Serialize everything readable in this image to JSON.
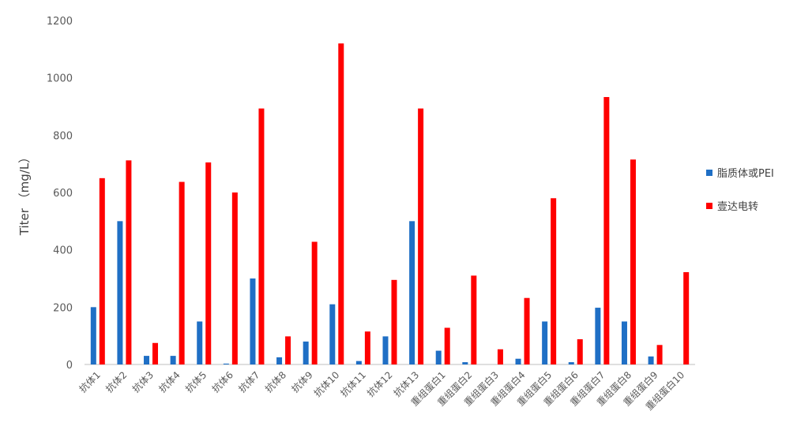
{
  "chart_data": {
    "type": "bar",
    "ylabel": "Titer （mg/L）",
    "ylim": [
      0,
      1200
    ],
    "yticks": [
      0,
      200,
      400,
      600,
      800,
      1000,
      1200
    ],
    "grid": false,
    "legend_position": "right",
    "categories": [
      "抗体1",
      "抗体2",
      "抗体3",
      "抗体4",
      "抗体5",
      "抗体6",
      "抗体7",
      "抗体8",
      "抗体9",
      "抗体10",
      "抗体11",
      "抗体12",
      "抗体13",
      "重组蛋白1",
      "重组蛋白2",
      "重组蛋白3",
      "重组蛋白4",
      "重组蛋白5",
      "重组蛋白6",
      "重组蛋白7",
      "重组蛋白8",
      "重组蛋白9",
      "重组蛋白10"
    ],
    "series": [
      {
        "name": "脂质体或PEI",
        "color": "#1f6fc5",
        "values": [
          200,
          500,
          30,
          30,
          150,
          3,
          300,
          25,
          80,
          210,
          12,
          98,
          500,
          48,
          8,
          0,
          20,
          150,
          8,
          198,
          150,
          28,
          0
        ]
      },
      {
        "name": "壹达电转",
        "color": "#ff0000",
        "values": [
          650,
          712,
          75,
          637,
          705,
          600,
          893,
          98,
          428,
          1120,
          115,
          295,
          893,
          128,
          310,
          53,
          232,
          580,
          88,
          933,
          715,
          68,
          322
        ]
      }
    ]
  }
}
